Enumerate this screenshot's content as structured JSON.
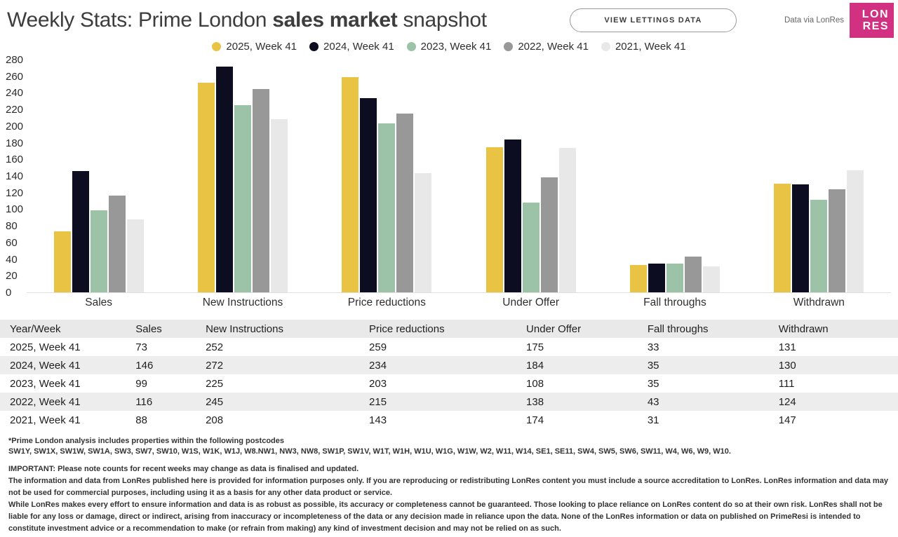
{
  "header": {
    "title_prefix": "Weekly Stats: Prime London ",
    "title_bold": "sales market",
    "title_suffix": " snapshot",
    "button_label": "VIEW LETTINGS DATA",
    "data_credit": "Data via LonRes",
    "logo_line1": "LON",
    "logo_line2": "RES",
    "logo_color": "#d23080"
  },
  "chart_data": {
    "type": "bar",
    "categories": [
      "Sales",
      "New Instructions",
      "Price reductions",
      "Under Offer",
      "Fall throughs",
      "Withdrawn"
    ],
    "series": [
      {
        "name": "2025, Week 41",
        "color": "#e8c344",
        "values": [
          73,
          252,
          259,
          175,
          33,
          131
        ]
      },
      {
        "name": "2024, Week 41",
        "color": "#0d0d22",
        "values": [
          146,
          272,
          234,
          184,
          35,
          130
        ]
      },
      {
        "name": "2023, Week 41",
        "color": "#9cc3a7",
        "values": [
          99,
          225,
          203,
          108,
          35,
          111
        ]
      },
      {
        "name": "2022, Week 41",
        "color": "#989898",
        "values": [
          116,
          245,
          215,
          138,
          43,
          124
        ]
      },
      {
        "name": "2021, Week 41",
        "color": "#e8e8e8",
        "values": [
          88,
          208,
          143,
          174,
          31,
          147
        ]
      }
    ],
    "ylim": [
      0,
      280
    ],
    "ytick_step": 20,
    "grid": false,
    "legend_position": "top"
  },
  "table": {
    "columns": [
      "Year/Week",
      "Sales",
      "New Instructions",
      "Price reductions",
      "Under Offer",
      "Fall throughs",
      "Withdrawn"
    ],
    "rows": [
      [
        "2025, Week 41",
        "73",
        "252",
        "259",
        "175",
        "33",
        "131"
      ],
      [
        "2024, Week 41",
        "146",
        "272",
        "234",
        "184",
        "35",
        "130"
      ],
      [
        "2023, Week 41",
        "99",
        "225",
        "203",
        "108",
        "35",
        "111"
      ],
      [
        "2022, Week 41",
        "116",
        "245",
        "215",
        "138",
        "43",
        "124"
      ],
      [
        "2021, Week 41",
        "88",
        "208",
        "143",
        "174",
        "31",
        "147"
      ]
    ]
  },
  "footer": {
    "footnote_line1": "*Prime London analysis includes properties within the following postcodes",
    "footnote_line2": "SW1Y, SW1X, SW1W, SW1A, SW3, SW7, SW10, W1S, W1K, W1J, W8.NW1, NW3, NW8, SW1P, SW1V, W1T, W1H, W1U, W1G, W1W, W2, W11, W14, SE1, SE11, SW4, SW5, SW6, SW11, W4, W6, W9, W10.",
    "disclaimer1": "IMPORTANT: Please note counts for recent weeks may change as data is finalised and updated.",
    "disclaimer2": "The information and data from LonRes published here is provided for information purposes only. If you are reproducing or redistributing LonRes content you must include a source accreditation to LonRes. LonRes information and data may not be used for commercial purposes, including using it as a basis for any other data product or service.",
    "disclaimer3": "While LonRes makes every effort to ensure information and data is as robust as possible, its accuracy or completeness cannot be guaranteed. Those looking to place reliance on LonRes content do so at their own risk. LonRes shall not be liable for any loss or damage, direct or indirect, arising from inaccuracy or incompleteness of the data or any decision made in reliance upon the data. None of the LonRes information or data on published on PrimeResi is intended to constitute investment advice or a recommendation to make (or refrain from making) any kind of investment decision and may not be relied on as such."
  }
}
